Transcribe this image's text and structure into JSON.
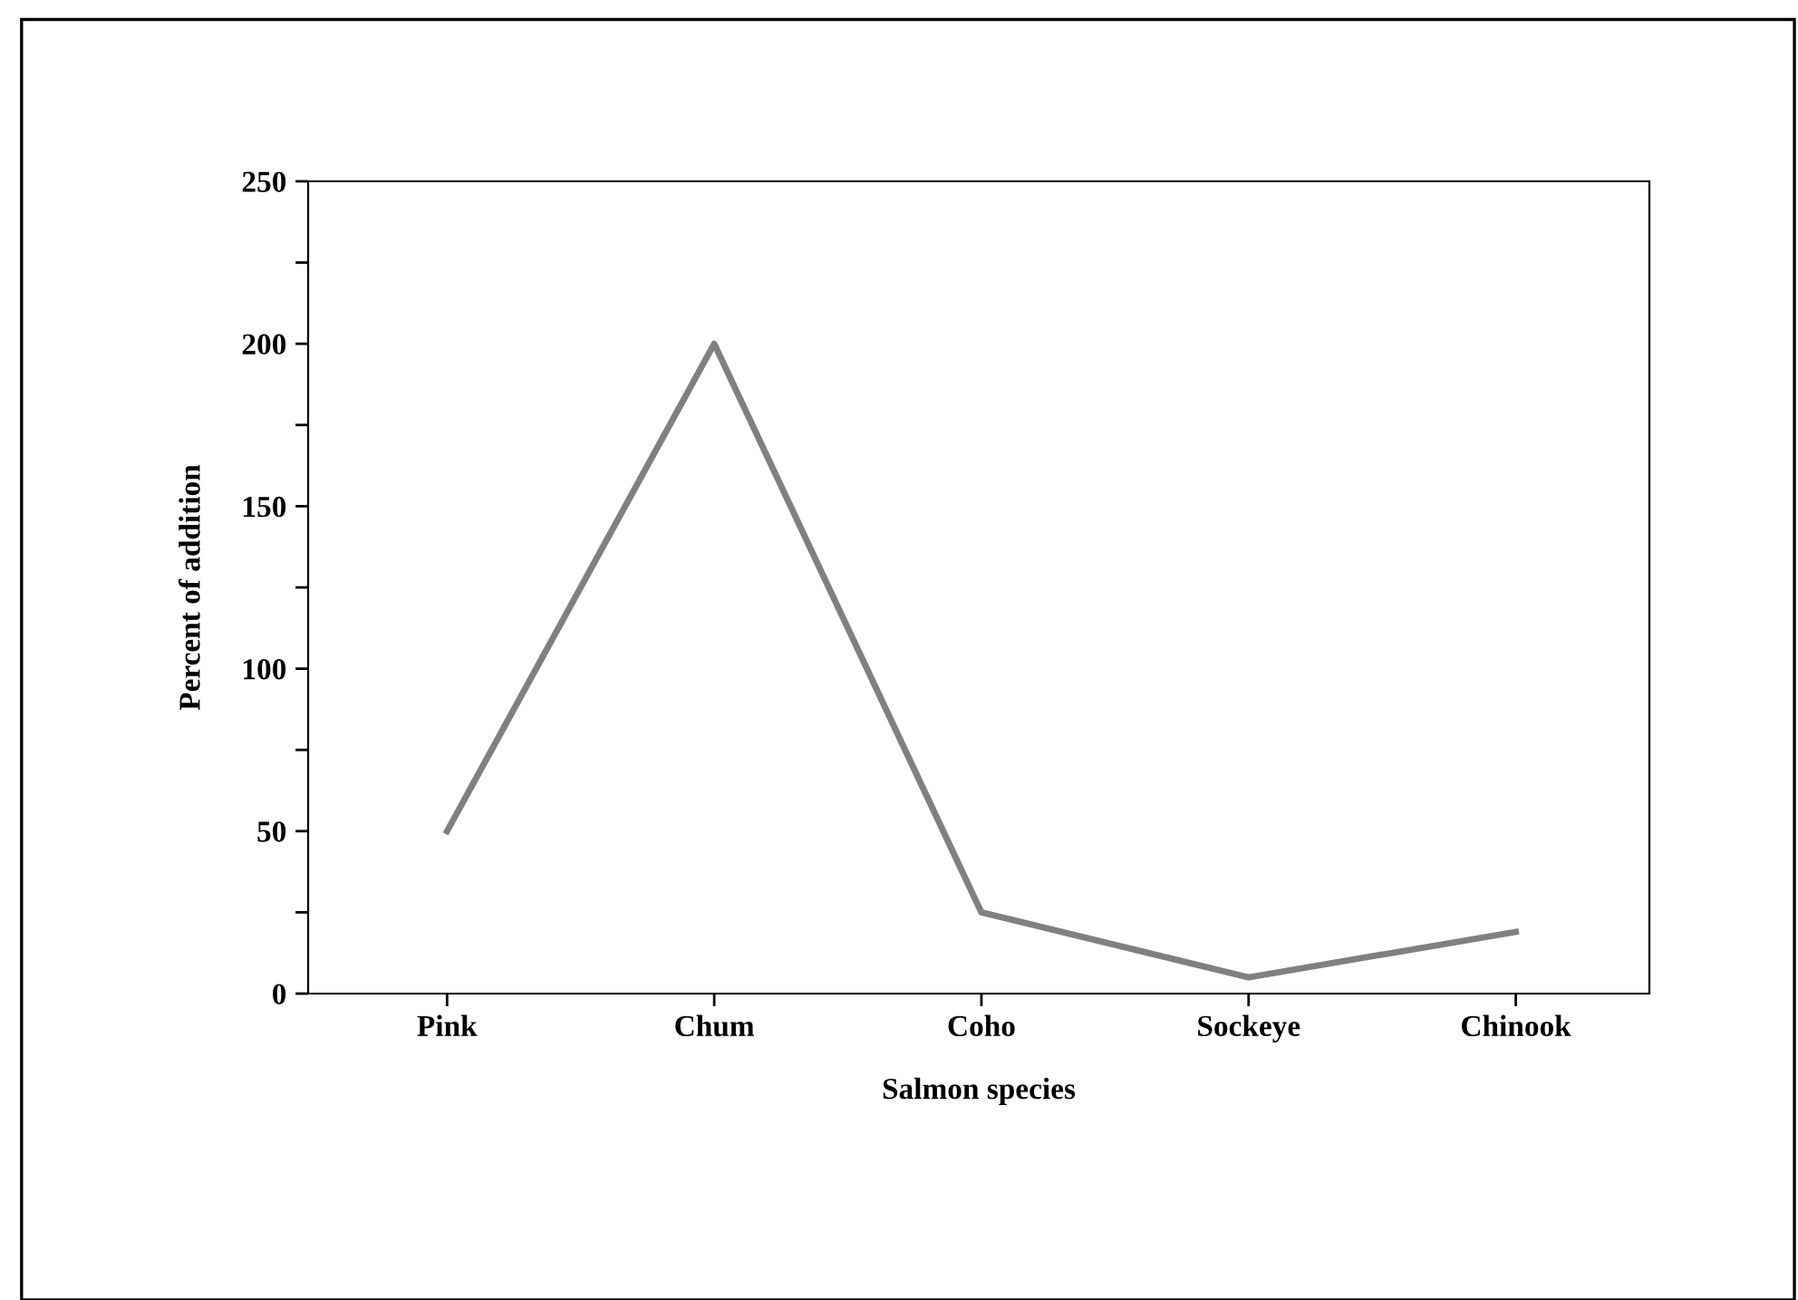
{
  "chart_data": {
    "type": "line",
    "xlabel": "Salmon species",
    "ylabel": "Percent of addition",
    "categories": [
      "Pink",
      "Chum",
      "Coho",
      "Sockeye",
      "Chinook"
    ],
    "series": [
      {
        "color": "#808080",
        "values": [
          50,
          200,
          25,
          5,
          19
        ]
      }
    ],
    "ylim": [
      0,
      250
    ],
    "yticks": [
      0,
      {
        "value": 25,
        "label": null
      },
      50,
      {
        "value": 75,
        "label": null
      },
      100,
      {
        "value": 125,
        "label": null
      },
      150,
      {
        "value": 175,
        "label": null
      },
      200,
      {
        "value": 225,
        "label": null
      },
      250
    ],
    "grid": false,
    "legend": false,
    "marker": "none",
    "line_style": "solid"
  }
}
